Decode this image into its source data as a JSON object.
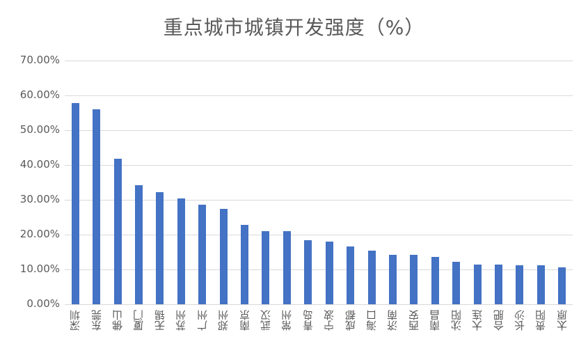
{
  "chart_data": {
    "type": "bar",
    "title": "重点城市城镇开发强度（%）",
    "xlabel": "",
    "ylabel": "",
    "ylim": [
      0,
      70
    ],
    "yticks": [
      "0.00%",
      "10.00%",
      "20.00%",
      "30.00%",
      "40.00%",
      "50.00%",
      "60.00%",
      "70.00%"
    ],
    "grid": true,
    "legend": null,
    "bar_color": "#4472c4",
    "categories": [
      "深圳",
      "东莞",
      "佛山",
      "厦门",
      "无锡",
      "苏州",
      "广州",
      "郑州",
      "南京",
      "武汉",
      "常州",
      "青岛",
      "宁波",
      "成都",
      "海口",
      "济南",
      "西安",
      "南昌",
      "沈阳",
      "大连",
      "合肥",
      "长沙",
      "贵阳",
      "太原"
    ],
    "values": [
      57.8,
      56.0,
      41.8,
      34.2,
      32.2,
      30.4,
      28.6,
      27.4,
      22.8,
      21.0,
      21.0,
      18.4,
      18.0,
      16.6,
      15.4,
      14.2,
      14.2,
      13.6,
      12.2,
      11.4,
      11.4,
      11.2,
      11.2,
      10.6
    ]
  }
}
